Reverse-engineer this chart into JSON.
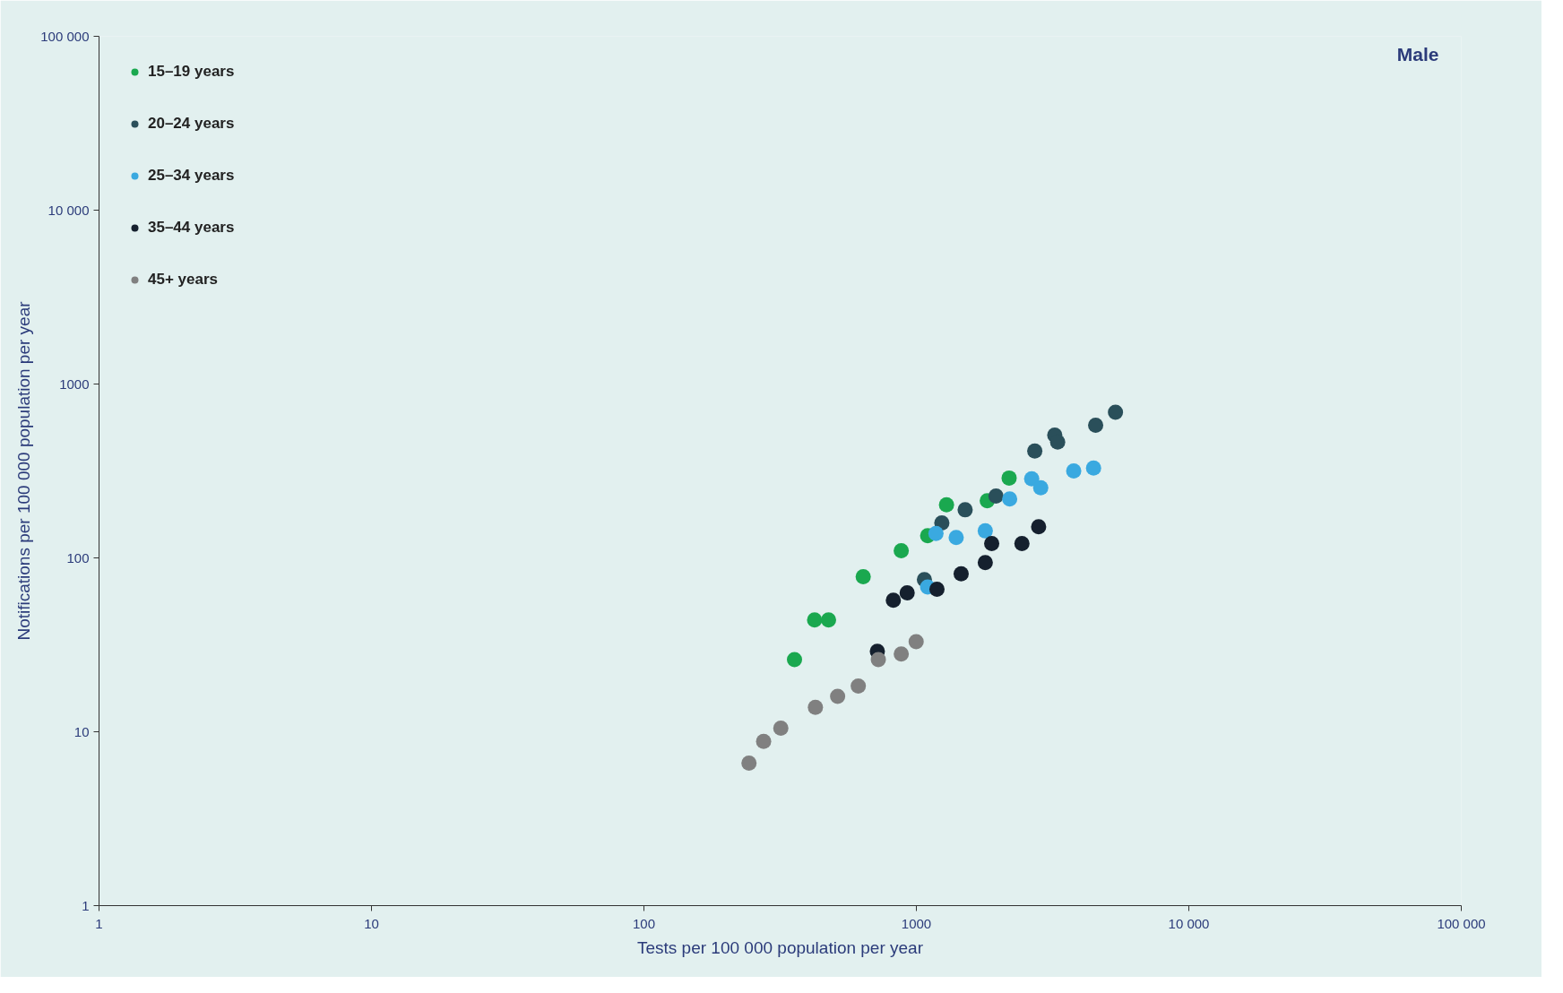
{
  "chart_data": {
    "type": "scatter",
    "log": "xy",
    "marker": "circle",
    "grid": false,
    "legend": "top left",
    "xlabel": "Tests per 100 000 population per year",
    "ylabel": "Notifications per 100 000 population per year",
    "annotations": [
      "Male"
    ],
    "xlim": [
      1,
      100000
    ],
    "ylim": [
      1,
      100000
    ],
    "xticks": [
      1,
      10,
      100,
      1000,
      {
        "value": 10000,
        "label": "10 000"
      },
      {
        "value": 100000,
        "label": "100 000"
      }
    ],
    "yticks": [
      1,
      10,
      100,
      1000,
      {
        "value": 10000,
        "label": "10 000"
      },
      {
        "value": 100000,
        "label": "100 000"
      }
    ],
    "series": [
      {
        "name": "15–19 years",
        "color": "#1aa84f",
        "x": [
          357,
          423,
          476,
          638,
          880,
          1100,
          1290,
          1820,
          2190
        ],
        "values": [
          26,
          44,
          44,
          78,
          110,
          134,
          202,
          213,
          288
        ]
      },
      {
        "name": "20–24 years",
        "color": "#2a4f5a",
        "x": [
          1070,
          1240,
          1510,
          1960,
          2720,
          3220,
          3300,
          4550,
          5380
        ],
        "values": [
          75,
          159,
          189,
          227,
          412,
          509,
          464,
          580,
          689
        ]
      },
      {
        "name": "25–34 years",
        "color": "#3aa9e0",
        "x": [
          1100,
          1180,
          1400,
          1790,
          2200,
          2650,
          2860,
          3780,
          4470
        ],
        "values": [
          68,
          138,
          131,
          143,
          218,
          285,
          253,
          316,
          329
        ]
      },
      {
        "name": "35–44 years",
        "color": "#15202e",
        "x": [
          719,
          823,
          925,
          1190,
          1460,
          1790,
          1890,
          2440,
          2810
        ],
        "values": [
          29,
          57,
          63,
          66,
          81,
          94,
          121,
          121,
          151
        ]
      },
      {
        "name": "45+ years",
        "color": "#808080",
        "x": [
          243,
          275,
          318,
          426,
          514,
          612,
          725,
          880,
          998
        ],
        "values": [
          6.6,
          8.8,
          10.5,
          13.8,
          16,
          18.3,
          26,
          28,
          33
        ]
      }
    ]
  }
}
